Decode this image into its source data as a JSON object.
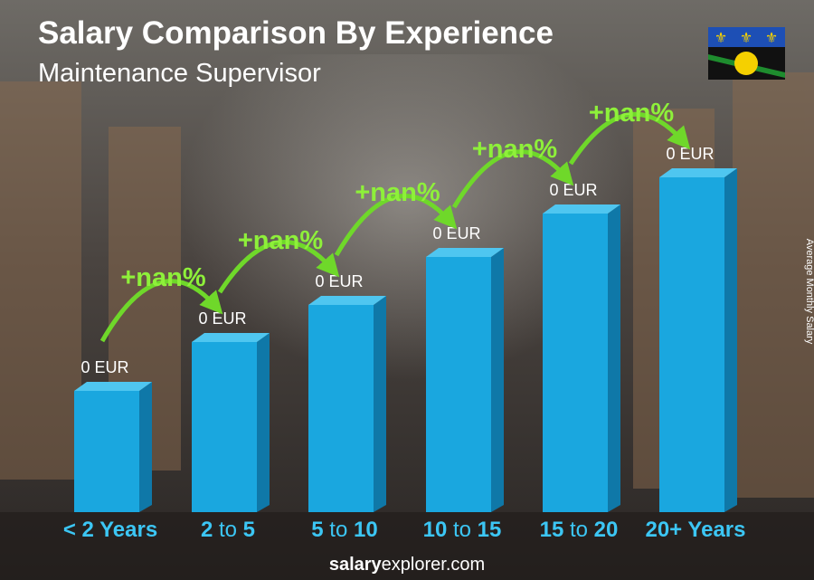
{
  "header": {
    "title": "Salary Comparison By Experience",
    "subtitle": "Maintenance Supervisor"
  },
  "categories": [
    [
      "< 2 Years"
    ],
    [
      "2",
      " to ",
      "5"
    ],
    [
      "5",
      " to ",
      "10"
    ],
    [
      "10",
      " to ",
      "15"
    ],
    [
      "15",
      " to ",
      "20"
    ],
    [
      "20+ Years"
    ]
  ],
  "value_labels": [
    "0 EUR",
    "0 EUR",
    "0 EUR",
    "0 EUR",
    "0 EUR",
    "0 EUR"
  ],
  "change_labels": [
    "+nan%",
    "+nan%",
    "+nan%",
    "+nan%",
    "+nan%"
  ],
  "axis_label": "Average Monthly Salary",
  "footer": [
    "salary",
    "explorer.com"
  ]
}
